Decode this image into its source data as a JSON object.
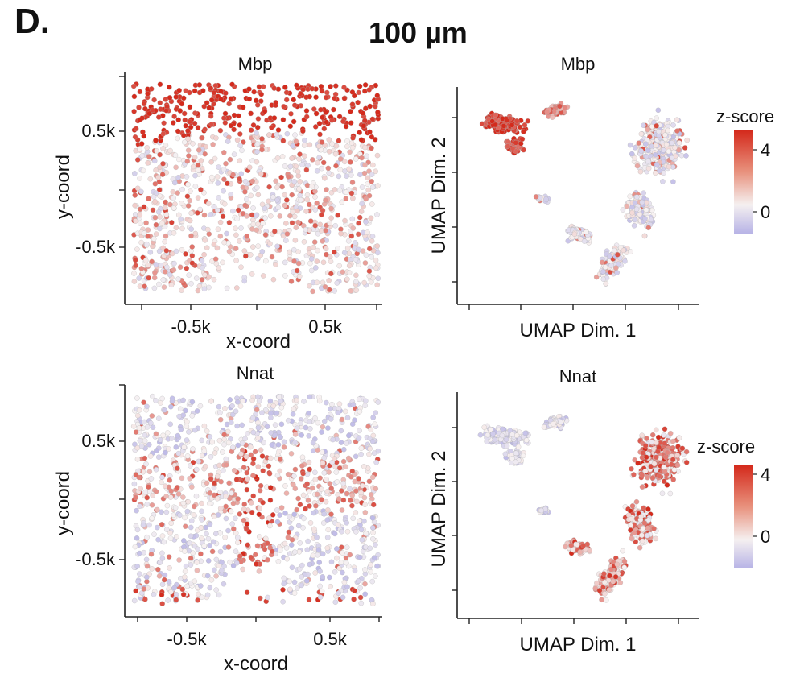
{
  "panel_label": "D.",
  "figure_title": "100 µm",
  "chart_data": [
    {
      "type": "scatter",
      "gene": "Mbp",
      "title": "Mbp",
      "view": "spatial",
      "xlabel": "x-coord",
      "ylabel": "y-coord",
      "xticks": [
        "-0.5k",
        "0.5k"
      ],
      "xtick_values": [
        -500,
        500
      ],
      "yticks": [
        "0.5k",
        "-0.5k"
      ],
      "ytick_values": [
        500,
        -500
      ],
      "xlim": [
        -950,
        950
      ],
      "ylim": [
        -1000,
        1000
      ],
      "color_metric": "z-score",
      "pattern": "high z-score band at the top of the section, scattered moderate values below"
    },
    {
      "type": "scatter",
      "gene": "Mbp",
      "title": "Mbp",
      "view": "umap",
      "xlabel": "UMAP Dim. 1",
      "ylabel": "UMAP Dim. 2",
      "color_metric": "z-score",
      "colorbar": {
        "label": "z-score",
        "ticks": [
          "4",
          "0"
        ],
        "tick_values": [
          4,
          0
        ],
        "range": [
          -1,
          4.5
        ]
      },
      "pattern": "high z-score in the top-left cluster"
    },
    {
      "type": "scatter",
      "gene": "Nnat",
      "title": "Nnat",
      "view": "spatial",
      "xlabel": "x-coord",
      "ylabel": "y-coord",
      "xticks": [
        "-0.5k",
        "0.5k"
      ],
      "xtick_values": [
        -500,
        500
      ],
      "yticks": [
        "0.5k",
        "-0.5k"
      ],
      "ytick_values": [
        500,
        -500
      ],
      "xlim": [
        -950,
        950
      ],
      "ylim": [
        -1000,
        1000
      ],
      "color_metric": "z-score",
      "pattern": "high z-score in a middle horizontal band and a central vertical stripe"
    },
    {
      "type": "scatter",
      "gene": "Nnat",
      "title": "Nnat",
      "view": "umap",
      "xlabel": "UMAP Dim. 1",
      "ylabel": "UMAP Dim. 2",
      "color_metric": "z-score",
      "colorbar": {
        "label": "z-score",
        "ticks": [
          "4",
          "0"
        ],
        "tick_values": [
          4,
          0
        ],
        "range": [
          -1,
          4.5
        ]
      },
      "pattern": "high z-score in the large right cluster and lower arm"
    }
  ],
  "colors": {
    "high": "#d42a1c",
    "mid": "#f7f2f2",
    "low": "#b7b3e6",
    "point_outline": "#b0b0b0"
  }
}
